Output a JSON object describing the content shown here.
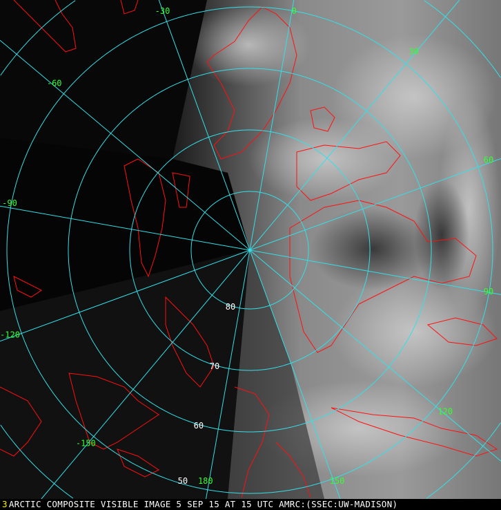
{
  "image": {
    "type": "polar stereographic satellite composite",
    "colors": {
      "grid": "#33e0e8",
      "coastline": "#ff1010",
      "label": "#33ff33",
      "lat_label": "#ffffff",
      "caption": "#ffffff",
      "caption_number": "#ffee00"
    }
  },
  "grid": {
    "longitudes": [
      -150,
      -120,
      -90,
      -60,
      -30,
      0,
      30,
      60,
      90,
      120,
      150,
      180
    ],
    "longitude_labels": [
      "-150",
      "-120",
      "-90",
      "-60",
      "-30",
      "0",
      "30",
      "60",
      "90",
      "120",
      "150",
      "180"
    ],
    "latitudes": [
      80,
      70,
      60,
      50,
      40
    ],
    "latitude_labels": [
      "80",
      "70",
      "60",
      "50"
    ]
  },
  "caption": {
    "number": "3",
    "text": "ARCTIC COMPOSITE VISIBLE IMAGE 5 SEP 15 AT 15 UTC AMRC:(SSEC:UW-MADISON)"
  }
}
